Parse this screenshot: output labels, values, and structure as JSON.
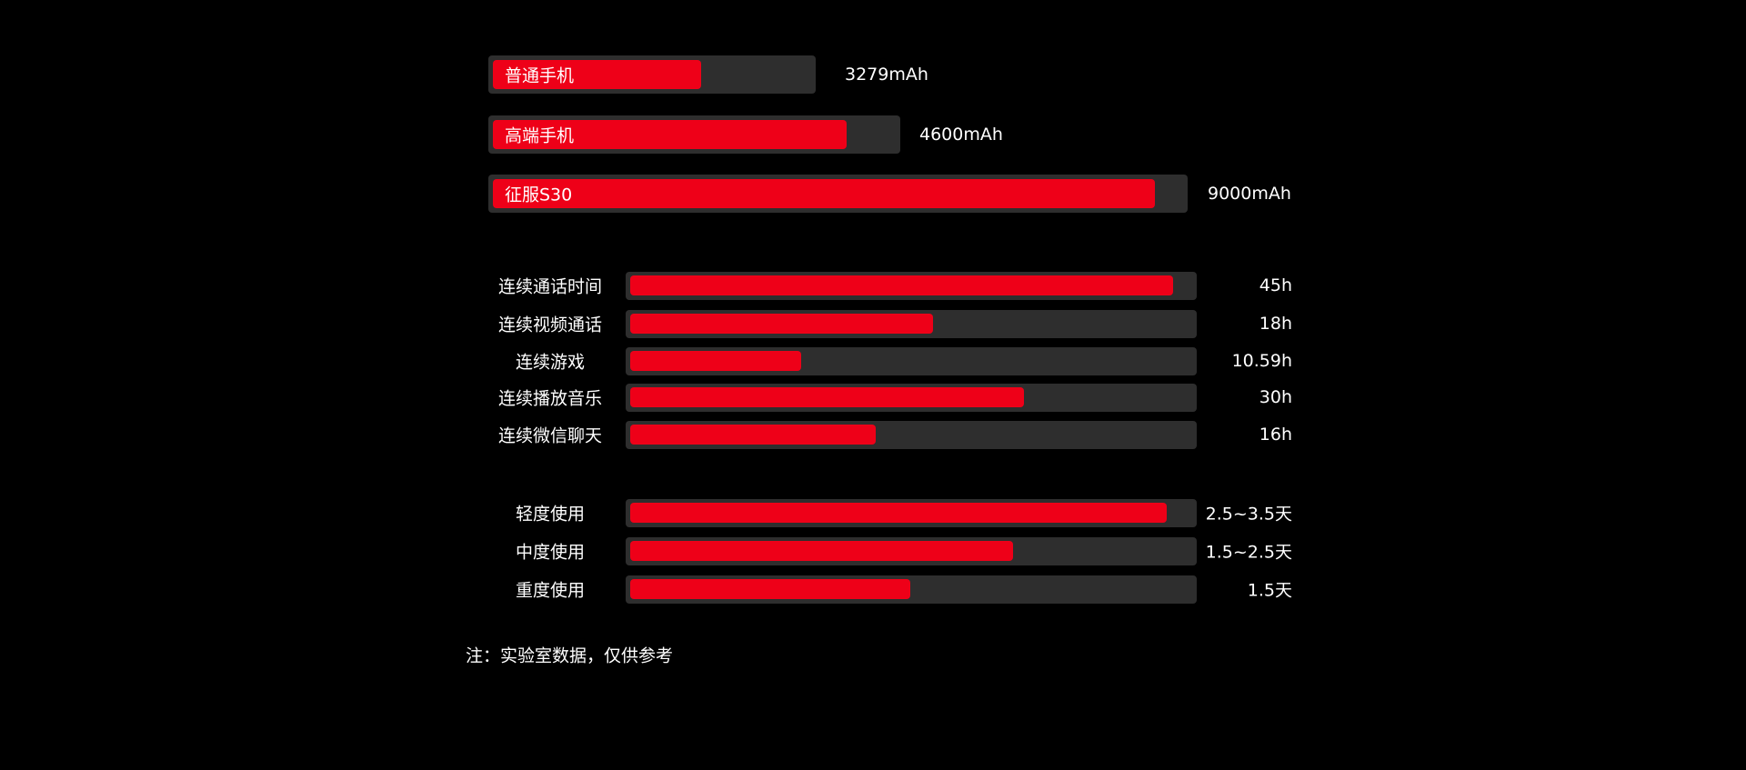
{
  "colors": {
    "background": "#000000",
    "track": "#2e2e2e",
    "fill": "#ee0018",
    "text": "#ffffff"
  },
  "chart_data": [
    {
      "type": "bar",
      "orientation": "horizontal",
      "title": "",
      "categories": [
        "普通手机",
        "高端手机",
        "征服S30"
      ],
      "value_labels": [
        "3279mAh",
        "4600mAh",
        "9000mAh"
      ],
      "values": [
        3279,
        4600,
        9000
      ],
      "fill_fraction": [
        0.65,
        0.87,
        0.953
      ]
    },
    {
      "type": "bar",
      "orientation": "horizontal",
      "title": "",
      "categories": [
        "连续通话时间",
        "连续视频通话",
        "连续游戏",
        "连续播放音乐",
        "连续微信聊天"
      ],
      "value_labels": [
        "45h",
        "18h",
        "10.59h",
        "30h",
        "16h"
      ],
      "values": [
        45,
        18,
        10.59,
        30,
        16
      ],
      "fill_fraction": [
        0.95,
        0.53,
        0.3,
        0.69,
        0.43
      ]
    },
    {
      "type": "bar",
      "orientation": "horizontal",
      "title": "",
      "categories": [
        "轻度使用",
        "中度使用",
        "重度使用"
      ],
      "value_labels": [
        "2.5~3.5天",
        "1.5~2.5天",
        "1.5天"
      ],
      "fill_fraction": [
        0.94,
        0.67,
        0.49
      ]
    }
  ],
  "note": "注：实验室数据，仅供参考"
}
